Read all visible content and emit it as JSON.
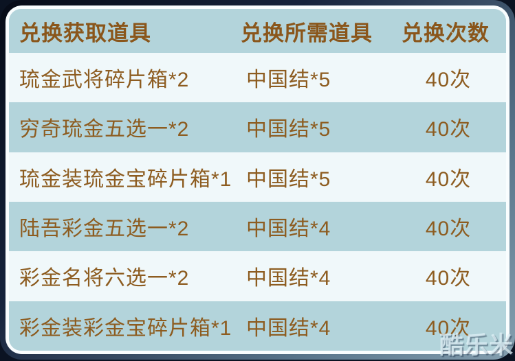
{
  "table": {
    "headers": [
      "兑换获取道具",
      "兑换所需道具",
      "兑换次数"
    ],
    "rows": [
      {
        "obtain": "琉金武将碎片箱*2",
        "cost": "中国结*5",
        "times": "40次"
      },
      {
        "obtain": "穷奇琉金五选一*2",
        "cost": "中国结*5",
        "times": "40次"
      },
      {
        "obtain": "琉金装琉金宝碎片箱*1",
        "cost": "中国结*5",
        "times": "40次"
      },
      {
        "obtain": "陆吾彩金五选一*2",
        "cost": "中国结*4",
        "times": "40次"
      },
      {
        "obtain": "彩金名将六选一*2",
        "cost": "中国结*4",
        "times": "40次"
      },
      {
        "obtain": "彩金装彩金宝碎片箱*1",
        "cost": "中国结*4",
        "times": "40次"
      }
    ]
  },
  "watermark": "酷乐米",
  "colors": {
    "border_dark_navy": "#16233c",
    "border_bevel_gray_blue": "#85a0b0",
    "inner_border_white": "#f9fdfe",
    "row_blue": "#b3d4db",
    "row_light": "#f0f8fa",
    "text_brown_header": "#8a561b",
    "text_brown_row": "#8d5c20"
  }
}
